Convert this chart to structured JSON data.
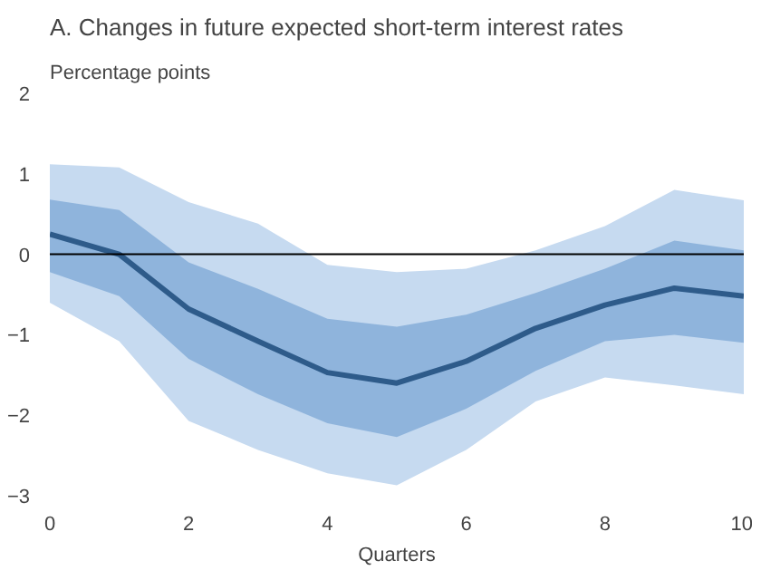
{
  "chart_data": {
    "type": "line",
    "title": "A. Changes in future expected short-term interest rates",
    "ylabel": "Percentage points",
    "xlabel": "Quarters",
    "x": [
      0,
      1,
      2,
      3,
      4,
      5,
      6,
      7,
      8,
      9,
      10
    ],
    "series": [
      {
        "color": "#c6daf0",
        "values": [
          null,
          null,
          null,
          null,
          null,
          null,
          null,
          null,
          null,
          null,
          null
        ],
        "lower": [
          -0.6,
          -1.08,
          -2.07,
          -2.43,
          -2.72,
          -2.87,
          -2.43,
          -1.83,
          -1.53,
          -1.63,
          -1.74
        ],
        "upper": [
          1.12,
          1.08,
          0.65,
          0.38,
          -0.13,
          -0.22,
          -0.18,
          0.05,
          0.35,
          0.8,
          0.67
        ]
      },
      {
        "color": "#8fb4dc",
        "values": [
          null,
          null,
          null,
          null,
          null,
          null,
          null,
          null,
          null,
          null,
          null
        ],
        "lower": [
          -0.22,
          -0.52,
          -1.3,
          -1.74,
          -2.1,
          -2.27,
          -1.92,
          -1.45,
          -1.08,
          -1.0,
          -1.1
        ],
        "upper": [
          0.68,
          0.55,
          -0.1,
          -0.43,
          -0.8,
          -0.9,
          -0.75,
          -0.48,
          -0.18,
          0.17,
          0.05
        ]
      },
      {
        "color": "#2e5b8a",
        "values": [
          0.25,
          0,
          -0.68,
          -1.08,
          -1.47,
          -1.6,
          -1.33,
          -0.92,
          -0.63,
          -0.42,
          -0.52
        ]
      }
    ],
    "xlim": [
      0,
      10
    ],
    "ylim": [
      -3,
      2
    ],
    "xticks": [
      0,
      2,
      4,
      6,
      8,
      10
    ],
    "yticks": [
      -3,
      -2,
      -1,
      0,
      1,
      2
    ],
    "ref_lines": [
      {
        "axis": "y",
        "value": 0,
        "color": "#000000"
      }
    ],
    "grid": false
  }
}
